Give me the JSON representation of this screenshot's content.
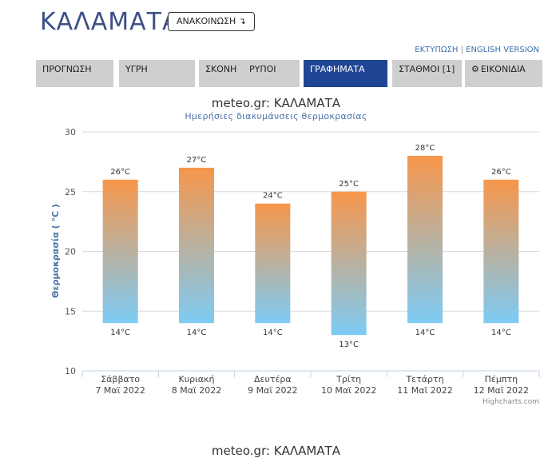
{
  "header": {
    "city": "ΚΑΛΑΜΑΤΑ",
    "announcement_label": "ΑΝΑΚΟΙΝΩΣΗ ↴",
    "print_label": "ΕΚΤΥΠΩΣΗ",
    "separator": "|",
    "english_label": "ENGLISH VERSION"
  },
  "tabs": [
    {
      "label": "ΠΡΟΓΝΩΣΗ",
      "active": false
    },
    {
      "label": "ΥΓΡΗ",
      "active": false
    },
    {
      "label": "ΣΚΟΝΗ",
      "active": false
    },
    {
      "label": "ΡΥΠΟΙ",
      "active": false
    },
    {
      "label": "ΓΡΑΦΗΜΑΤΑ",
      "active": true
    },
    {
      "label": "ΣΤΑΘΜΟΙ [1]",
      "active": false
    },
    {
      "label": "ΕΙΚΟΝΙΔΙΑ",
      "active": false,
      "icon": "gear-icon"
    }
  ],
  "chart_data": {
    "type": "columnrange",
    "title": "meteo.gr: ΚΑΛΑΜΑΤΑ",
    "subtitle": "Ημερήσιες διακυμάνσεις θερμοκρασίας",
    "ylabel": "Θερμοκρασία ( °C )",
    "ylim": [
      10,
      30
    ],
    "yticks": [
      10,
      15,
      20,
      25,
      30
    ],
    "grid": true,
    "unit": "°C",
    "categories": [
      {
        "day": "Σάββατο",
        "date": "7 Μαϊ 2022"
      },
      {
        "day": "Κυριακή",
        "date": "8 Μαϊ 2022"
      },
      {
        "day": "Δευτέρα",
        "date": "9 Μαϊ 2022"
      },
      {
        "day": "Τρίτη",
        "date": "10 Μαϊ 2022"
      },
      {
        "day": "Τετάρτη",
        "date": "11 Μαϊ 2022"
      },
      {
        "day": "Πέμπτη",
        "date": "12 Μαϊ 2022"
      }
    ],
    "low": [
      14,
      14,
      14,
      13,
      14,
      14
    ],
    "high": [
      26,
      27,
      24,
      25,
      28,
      26
    ],
    "colors": {
      "top": "#f7964a",
      "bottom": "#7dcbf5",
      "grid": "#d8d8d8",
      "axis": "#c0d0e0"
    },
    "credits": "Highcharts.com"
  },
  "next_chart_title": "meteo.gr: ΚΑΛΑΜΑΤΑ"
}
